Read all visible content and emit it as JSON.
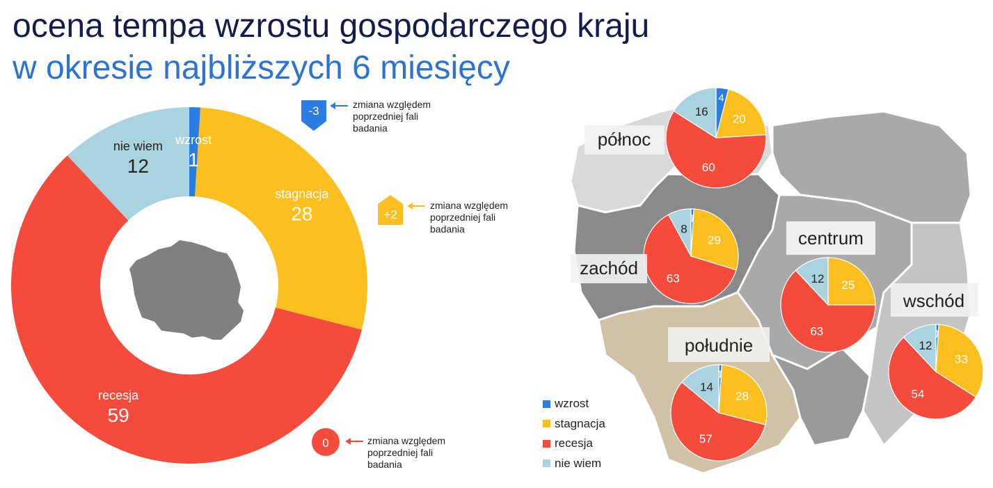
{
  "title": {
    "line1": "ocena tempa wzrostu gospodarczego kraju",
    "line2": "w okresie najbliższych 6 miesięcy"
  },
  "colors": {
    "wzrost": "#2a7de1",
    "stagnacja": "#fbbf20",
    "recesja": "#f44b3d",
    "nie_wiem": "#a9d3df",
    "title_dark": "#141b4d",
    "title_blue": "#2c73d2",
    "map_dark": "#8a8a8a",
    "map_mid": "#a9a9a9",
    "map_light": "#d9d9d9",
    "map_beige": "#cfc2a6"
  },
  "chart_data": [
    {
      "type": "pie",
      "variant": "donut",
      "region": "kraj",
      "slices": [
        {
          "key": "wzrost",
          "label": "wzrost",
          "value": 1
        },
        {
          "key": "stagnacja",
          "label": "stagnacja",
          "value": 28
        },
        {
          "key": "recesja",
          "label": "recesja",
          "value": 59
        },
        {
          "key": "nie_wiem",
          "label": "nie wiem",
          "value": 12
        }
      ],
      "change_badges": [
        {
          "key": "wzrost",
          "value": "-3",
          "direction": "down",
          "note": "zmiana względem poprzedniej fali badania"
        },
        {
          "key": "stagnacja",
          "value": "+2",
          "direction": "up",
          "note": "zmiana względem poprzedniej fali badania"
        },
        {
          "key": "recesja",
          "value": "0",
          "direction": "none",
          "note": "zmiana względem poprzedniej fali badania"
        }
      ]
    },
    {
      "type": "pie",
      "region": "północ",
      "values": {
        "wzrost": 4,
        "stagnacja": 20,
        "recesja": 60,
        "nie_wiem": 16
      }
    },
    {
      "type": "pie",
      "region": "zachód",
      "values": {
        "wzrost": 1,
        "stagnacja": 29,
        "recesja": 63,
        "nie_wiem": 8
      }
    },
    {
      "type": "pie",
      "region": "centrum",
      "values": {
        "wzrost": 0,
        "stagnacja": 25,
        "recesja": 63,
        "nie_wiem": 12
      }
    },
    {
      "type": "pie",
      "region": "wschód",
      "values": {
        "wzrost": 1,
        "stagnacja": 33,
        "recesja": 54,
        "nie_wiem": 12
      }
    },
    {
      "type": "pie",
      "region": "południe",
      "values": {
        "wzrost": 1,
        "stagnacja": 28,
        "recesja": 57,
        "nie_wiem": 14
      }
    }
  ],
  "legend": [
    {
      "key": "wzrost",
      "label": "wzrost"
    },
    {
      "key": "stagnacja",
      "label": "stagnacja"
    },
    {
      "key": "recesja",
      "label": "recesja"
    },
    {
      "key": "nie_wiem",
      "label": "nie wiem"
    }
  ],
  "region_labels": {
    "polnoc": "północ",
    "zachod": "zachód",
    "centrum": "centrum",
    "wschod": "wschód",
    "poludnie": "południe"
  },
  "badge_note": [
    "zmiana względem",
    "poprzedniej fali",
    "badania"
  ]
}
